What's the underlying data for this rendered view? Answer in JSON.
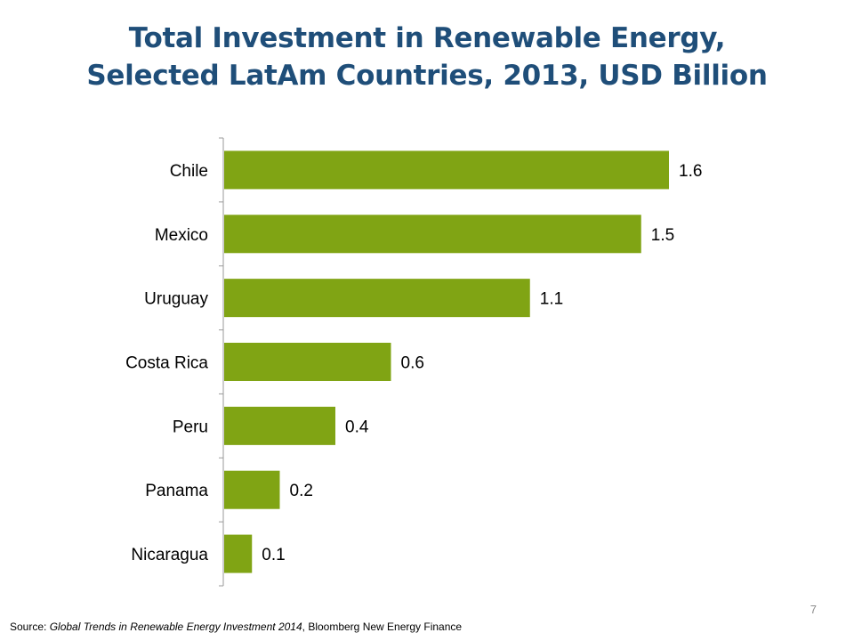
{
  "title_line1": "Total Investment in Renewable Energy,",
  "title_line2": "Selected LatAm Countries, 2013, USD Billion",
  "chart_data": {
    "type": "bar",
    "orientation": "horizontal",
    "title": "Total Investment in Renewable Energy, Selected LatAm Countries, 2013, USD Billion",
    "categories": [
      "Chile",
      "Mexico",
      "Uruguay",
      "Costa Rica",
      "Peru",
      "Panama",
      "Nicaragua"
    ],
    "values": [
      1.6,
      1.5,
      1.1,
      0.6,
      0.4,
      0.2,
      0.1
    ],
    "value_labels": [
      "1.6",
      "1.5",
      "1.1",
      "0.6",
      "0.4",
      "0.2",
      "0.1"
    ],
    "xlim": [
      0,
      1.7
    ],
    "xlabel": "",
    "ylabel": "",
    "grid": false,
    "legend": "none",
    "bar_color": "#80a414"
  },
  "footer": {
    "page_number": "7",
    "source_prefix": "Source: ",
    "source_title": "Global Trends in Renewable Energy Investment 2014",
    "source_suffix": ", Bloomberg New Energy Finance"
  }
}
